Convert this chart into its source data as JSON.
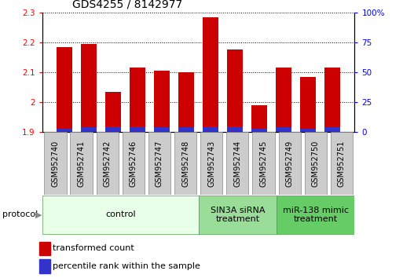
{
  "title": "GDS4255 / 8142977",
  "samples": [
    "GSM952740",
    "GSM952741",
    "GSM952742",
    "GSM952746",
    "GSM952747",
    "GSM952748",
    "GSM952743",
    "GSM952744",
    "GSM952745",
    "GSM952749",
    "GSM952750",
    "GSM952751"
  ],
  "transformed_count": [
    2.185,
    2.195,
    2.035,
    2.115,
    2.105,
    2.1,
    2.285,
    2.175,
    1.99,
    2.115,
    2.085,
    2.115
  ],
  "percentile_rank": [
    3,
    4,
    5,
    5,
    4,
    4,
    5,
    5,
    3,
    4,
    3,
    4
  ],
  "ylim_left": [
    1.9,
    2.3
  ],
  "yticks_left": [
    1.9,
    2.0,
    2.1,
    2.2,
    2.3
  ],
  "ytick_labels_left": [
    "1.9",
    "2",
    "2.1",
    "2.2",
    "2.3"
  ],
  "yticks_right_labels": [
    "100%",
    "75",
    "50",
    "25",
    "0"
  ],
  "bar_color_red": "#cc0000",
  "bar_color_blue": "#3333cc",
  "bar_bottom": 1.9,
  "yrange": 0.4,
  "percentile_max": 100,
  "groups": [
    {
      "label": "control",
      "start": 0,
      "end": 6,
      "color": "#e8ffe8"
    },
    {
      "label": "SIN3A siRNA\ntreatment",
      "start": 6,
      "end": 9,
      "color": "#99dd99"
    },
    {
      "label": "miR-138 mimic\ntreatment",
      "start": 9,
      "end": 12,
      "color": "#66cc66"
    }
  ],
  "protocol_label": "protocol",
  "legend_red": "transformed count",
  "legend_blue": "percentile rank within the sample",
  "title_fontsize": 10,
  "tick_fontsize": 7.5,
  "label_fontsize": 8,
  "group_fontsize": 8,
  "sample_fontsize": 7
}
